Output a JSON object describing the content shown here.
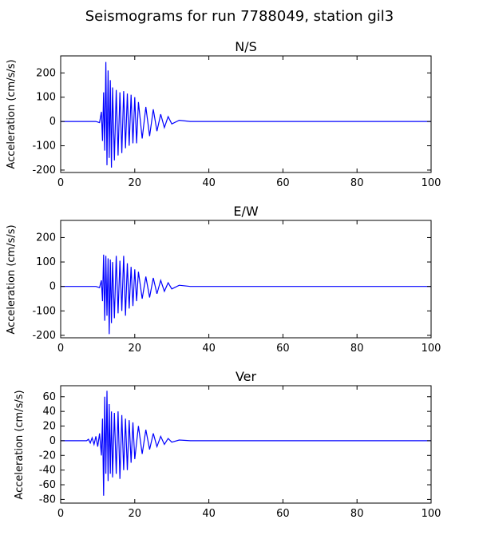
{
  "title": "Seismograms for run 7788049, station gil3",
  "colors": {
    "trace": "#0000ff",
    "axes": "#000000"
  },
  "chart_data": [
    {
      "type": "line",
      "title": "N/S",
      "xlabel": "",
      "ylabel": "Acceleration (cm/s/s)",
      "xlim": [
        0,
        100
      ],
      "ylim": [
        -210,
        270
      ],
      "xticks": [
        0,
        20,
        40,
        60,
        80,
        100
      ],
      "yticks": [
        -200,
        -100,
        0,
        100,
        200
      ],
      "grid": false,
      "series": [
        {
          "x": [
            0,
            9.5,
            10.5,
            11.0,
            11.3,
            11.6,
            11.9,
            12.2,
            12.5,
            12.8,
            13.1,
            13.4,
            13.7,
            14.0,
            14.5,
            15.0,
            15.5,
            16.0,
            16.5,
            17.0,
            17.5,
            18.0,
            18.5,
            19.0,
            19.5,
            20.0,
            20.5,
            21.0,
            22.0,
            23.0,
            24.0,
            25.0,
            26.0,
            27.0,
            28.0,
            29.0,
            30.0,
            32.0,
            35.0,
            100
          ],
          "y": [
            0,
            0,
            -5,
            40,
            -80,
            120,
            -120,
            245,
            -180,
            210,
            -150,
            170,
            -190,
            140,
            -160,
            130,
            -140,
            120,
            -130,
            125,
            -110,
            115,
            -100,
            110,
            -90,
            100,
            -90,
            80,
            -70,
            60,
            -60,
            50,
            -40,
            30,
            -25,
            20,
            -10,
            5,
            0,
            0
          ]
        }
      ]
    },
    {
      "type": "line",
      "title": "E/W",
      "xlabel": "",
      "ylabel": "Acceleration (cm/s/s)",
      "xlim": [
        0,
        100
      ],
      "ylim": [
        -210,
        270
      ],
      "xticks": [
        0,
        20,
        40,
        60,
        80,
        100
      ],
      "yticks": [
        -200,
        -100,
        0,
        100,
        200
      ],
      "grid": false,
      "series": [
        {
          "x": [
            0,
            9.5,
            10.5,
            11.0,
            11.3,
            11.6,
            11.9,
            12.2,
            12.5,
            12.8,
            13.1,
            13.4,
            13.7,
            14.0,
            14.5,
            15.0,
            15.5,
            16.0,
            16.5,
            17.0,
            17.5,
            18.0,
            18.5,
            19.0,
            19.5,
            20.0,
            20.5,
            21.0,
            22.0,
            23.0,
            24.0,
            25.0,
            26.0,
            27.0,
            28.0,
            29.0,
            30.0,
            32.0,
            35.0,
            100
          ],
          "y": [
            0,
            0,
            -5,
            25,
            -60,
            130,
            -140,
            125,
            -120,
            115,
            -195,
            110,
            -150,
            100,
            -130,
            125,
            -110,
            105,
            -100,
            125,
            -120,
            95,
            -90,
            80,
            -80,
            70,
            -60,
            60,
            -50,
            40,
            -45,
            35,
            -30,
            25,
            -20,
            15,
            -10,
            5,
            0,
            0
          ]
        }
      ]
    },
    {
      "type": "line",
      "title": "Ver",
      "xlabel": "",
      "ylabel": "Acceleration (cm/s/s)",
      "xlim": [
        0,
        100
      ],
      "ylim": [
        -85,
        75
      ],
      "xticks": [
        0,
        20,
        40,
        60,
        80,
        100
      ],
      "yticks": [
        -80,
        -60,
        -40,
        -20,
        0,
        20,
        40,
        60
      ],
      "grid": false,
      "series": [
        {
          "x": [
            0,
            7.0,
            7.5,
            8.0,
            8.5,
            9.0,
            9.5,
            10.0,
            10.5,
            11.0,
            11.3,
            11.6,
            11.9,
            12.2,
            12.5,
            12.8,
            13.1,
            13.4,
            13.7,
            14.0,
            14.5,
            15.0,
            15.5,
            16.0,
            16.5,
            17.0,
            17.5,
            18.0,
            18.5,
            19.0,
            19.5,
            20.0,
            21.0,
            22.0,
            23.0,
            24.0,
            25.0,
            26.0,
            27.0,
            28.0,
            29.0,
            30.0,
            32.0,
            35.0,
            100
          ],
          "y": [
            0,
            0,
            2,
            -3,
            4,
            -5,
            6,
            -8,
            10,
            -20,
            30,
            -75,
            60,
            -45,
            68,
            -55,
            50,
            -45,
            40,
            -50,
            38,
            -45,
            40,
            -52,
            35,
            -40,
            30,
            -40,
            28,
            -30,
            25,
            -25,
            20,
            -18,
            15,
            -12,
            10,
            -8,
            6,
            -5,
            3,
            -2,
            1,
            0,
            0
          ]
        }
      ]
    }
  ]
}
